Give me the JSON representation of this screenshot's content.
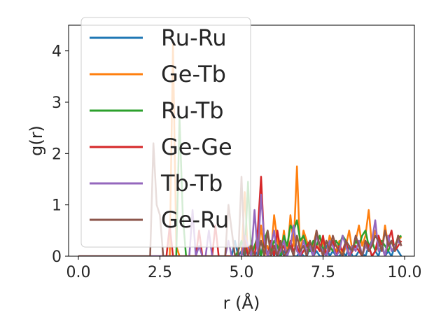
{
  "chart_data": {
    "type": "line",
    "xlabel": "r (Å)",
    "ylabel": "g(r)",
    "xlim": [
      -0.3,
      10.3
    ],
    "ylim": [
      0,
      4.5
    ],
    "xticks": [
      0.0,
      2.5,
      5.0,
      7.5,
      10.0
    ],
    "xtick_labels": [
      "0.0",
      "2.5",
      "5.0",
      "7.5",
      "10.0"
    ],
    "yticks": [
      0,
      1,
      2,
      3,
      4
    ],
    "ytick_labels": [
      "0",
      "1",
      "2",
      "3",
      "4"
    ],
    "grid": false,
    "legend_position": "upper-left",
    "x": [
      0.0,
      0.1,
      0.2,
      0.3,
      0.4,
      0.5,
      0.6,
      0.7,
      0.8,
      0.9,
      1.0,
      1.1,
      1.2,
      1.3,
      1.4,
      1.5,
      1.6,
      1.7,
      1.8,
      1.9,
      2.0,
      2.1,
      2.2,
      2.3,
      2.4,
      2.5,
      2.6,
      2.7,
      2.8,
      2.9,
      3.0,
      3.1,
      3.2,
      3.3,
      3.4,
      3.5,
      3.6,
      3.7,
      3.8,
      3.9,
      4.0,
      4.1,
      4.2,
      4.3,
      4.4,
      4.5,
      4.6,
      4.7,
      4.8,
      4.9,
      5.0,
      5.1,
      5.2,
      5.3,
      5.4,
      5.5,
      5.6,
      5.7,
      5.8,
      5.9,
      6.0,
      6.1,
      6.2,
      6.3,
      6.4,
      6.5,
      6.6,
      6.7,
      6.8,
      6.9,
      7.0,
      7.1,
      7.2,
      7.3,
      7.4,
      7.5,
      7.6,
      7.7,
      7.8,
      7.9,
      8.0,
      8.1,
      8.2,
      8.3,
      8.4,
      8.5,
      8.6,
      8.7,
      8.8,
      8.9,
      9.0,
      9.1,
      9.2,
      9.3,
      9.4,
      9.5,
      9.6,
      9.7,
      9.8,
      9.9
    ],
    "series": [
      {
        "name": "Ru-Ru",
        "color": "#1f77b4",
        "values": [
          0,
          0,
          0,
          0,
          0,
          0,
          0,
          0,
          0,
          0,
          0,
          0,
          0,
          0,
          0,
          0,
          0,
          0,
          0,
          0,
          0,
          0,
          0,
          0,
          0,
          0,
          0,
          0,
          0,
          0,
          0,
          0,
          0,
          0,
          0,
          0,
          0,
          0,
          0,
          0,
          0,
          0,
          0,
          0,
          0,
          0,
          0,
          0,
          0.3,
          0,
          0.1,
          0,
          0.2,
          0,
          0,
          0.1,
          0,
          0.4,
          0,
          0,
          0.1,
          0,
          0,
          0.1,
          0,
          0.2,
          0,
          0,
          0.1,
          0,
          0,
          0.15,
          0,
          0.1,
          0,
          0,
          0.2,
          0,
          0.1,
          0,
          0,
          0.1,
          0,
          0.2,
          0,
          0,
          0.1,
          0.05,
          0,
          0.2,
          0,
          0.1,
          0,
          0.25,
          0,
          0.1,
          0,
          0.2,
          0.1,
          0
        ]
      },
      {
        "name": "Ge-Tb",
        "color": "#ff7f0e",
        "values": [
          0,
          0,
          0,
          0,
          0,
          0,
          0,
          0,
          0,
          0,
          0,
          0,
          0,
          0,
          0,
          0,
          0,
          0,
          0,
          0,
          0,
          0,
          0,
          0,
          0,
          0,
          0,
          0,
          0,
          4.15,
          0.2,
          0,
          0,
          0,
          0,
          0,
          0,
          0,
          0,
          0,
          0,
          0,
          0,
          0,
          0,
          0,
          0,
          0,
          0,
          0,
          0,
          1.25,
          0,
          0.3,
          0,
          0,
          0.6,
          0,
          0.2,
          0,
          0.8,
          0.3,
          0,
          0.5,
          0,
          0.8,
          0.2,
          1.75,
          0,
          0.5,
          0.3,
          0.1,
          0.2,
          0.5,
          0.1,
          0.3,
          0,
          0.4,
          0.2,
          0.1,
          0.3,
          0,
          0.2,
          0.5,
          0.1,
          0.3,
          0.6,
          0.2,
          0.4,
          0.9,
          0.2,
          0.5,
          0.3,
          0.1,
          0.6,
          0.2,
          0.3,
          0.1,
          0.4,
          0.35
        ]
      },
      {
        "name": "Ru-Tb",
        "color": "#2ca02c",
        "values": [
          0,
          0,
          0,
          0,
          0,
          0,
          0,
          0,
          0,
          0,
          0,
          0,
          0,
          0,
          0,
          0,
          0,
          0,
          0,
          0,
          0,
          0,
          0,
          0,
          0,
          0,
          0,
          0,
          0,
          0,
          0,
          2.7,
          0.8,
          0,
          0,
          0,
          0,
          0,
          0,
          0,
          0,
          0,
          0,
          0,
          0,
          0,
          0,
          0,
          0,
          0.1,
          0.3,
          0,
          1.45,
          0,
          0.2,
          0.4,
          0,
          0.3,
          0.5,
          0.1,
          0.3,
          0.2,
          0,
          0.4,
          0.2,
          0.6,
          0.5,
          0.7,
          0.3,
          0.4,
          0.2,
          0.1,
          0.3,
          0.2,
          0.4,
          0.1,
          0.3,
          0.2,
          0.1,
          0.3,
          0.2,
          0.4,
          0.3,
          0.2,
          0.1,
          0.3,
          0.2,
          0.4,
          0.5,
          0.2,
          0.3,
          0.1,
          0.2,
          0.3,
          0.2,
          0.1,
          0.3,
          0.2,
          0.35,
          0.4
        ]
      },
      {
        "name": "Ge-Ge",
        "color": "#d62728",
        "values": [
          0,
          0,
          0,
          0,
          0,
          0,
          0,
          0,
          0,
          0,
          0,
          0,
          0,
          0,
          0,
          0,
          0,
          0,
          0,
          0,
          0,
          0,
          0,
          0,
          0,
          0,
          0,
          0,
          0.6,
          0,
          0,
          0,
          0,
          0,
          0,
          0,
          0,
          0.5,
          0,
          0,
          0,
          0,
          0.6,
          0,
          0,
          0,
          0,
          0,
          0,
          0,
          0,
          0.3,
          0,
          0,
          0,
          0.5,
          1.55,
          0.2,
          0,
          0.3,
          0,
          0.5,
          0.1,
          0.2,
          0,
          0.3,
          0.1,
          0.2,
          0,
          0.1,
          0.2,
          0.3,
          0,
          0.2,
          0.1,
          0.4,
          0,
          0.2,
          0.3,
          0,
          0.2,
          0.1,
          0.3,
          0,
          0.1,
          0.2,
          0.1,
          0,
          0.3,
          0.2,
          0,
          0.1,
          0.4,
          0.2,
          0,
          0.3,
          0.5,
          0.1,
          0.2,
          0.3
        ]
      },
      {
        "name": "Tb-Tb",
        "color": "#9467bd",
        "values": [
          0,
          0,
          0,
          0,
          0,
          0,
          0,
          0,
          0,
          0,
          0,
          0,
          0,
          0,
          0,
          0,
          0,
          0,
          0,
          0,
          0,
          0,
          0,
          0,
          0,
          0,
          0,
          0,
          0,
          0,
          0,
          0,
          0,
          0,
          0,
          0.9,
          0,
          0.2,
          0,
          0,
          0.5,
          0,
          0,
          0,
          0,
          0,
          0.3,
          0,
          0,
          0,
          0,
          0.4,
          0.2,
          0,
          0.9,
          0,
          1.2,
          0.3,
          0,
          0.2,
          0.5,
          0,
          0.1,
          0.3,
          0,
          0.2,
          0.6,
          0.1,
          0,
          0.3,
          0.1,
          0.2,
          0,
          0.4,
          0.2,
          0.1,
          0,
          0.3,
          0.2,
          0,
          0.1,
          0.4,
          0.2,
          0,
          0.2,
          0.1,
          0.3,
          0,
          0.2,
          0.1,
          0.3,
          0.7,
          0.1,
          0.2,
          0,
          0.4,
          0.1,
          0.2,
          0.3,
          0.2
        ]
      },
      {
        "name": "Ge-Ru",
        "color": "#8c564b",
        "values": [
          0,
          0,
          0,
          0,
          0,
          0,
          0,
          0,
          0,
          0,
          0,
          0,
          0,
          0,
          0,
          0,
          0,
          0,
          0,
          0,
          0,
          0,
          0,
          2.2,
          1.0,
          0.8,
          0,
          0,
          0,
          0,
          0,
          0,
          0,
          0,
          0,
          0,
          0,
          0,
          0,
          0,
          0,
          0,
          0,
          0,
          0,
          0,
          1.0,
          0.5,
          0,
          0,
          1.55,
          0,
          0,
          0.2,
          0,
          0,
          0.3,
          0,
          0.5,
          0,
          0.2,
          0,
          0.3,
          0,
          0.1,
          0.2,
          0,
          0.4,
          0.1,
          0.2,
          0,
          0.3,
          0.1,
          0.5,
          0.2,
          0,
          0.3,
          0.1,
          0.4,
          0.2,
          0.1,
          0,
          0.3,
          0.2,
          0.1,
          0.4,
          0.2,
          0,
          0.3,
          0.1,
          0.2,
          0.4,
          0.3,
          0.1,
          0.5,
          0.2,
          0.3,
          0.1,
          0.4,
          0.2
        ]
      }
    ]
  }
}
